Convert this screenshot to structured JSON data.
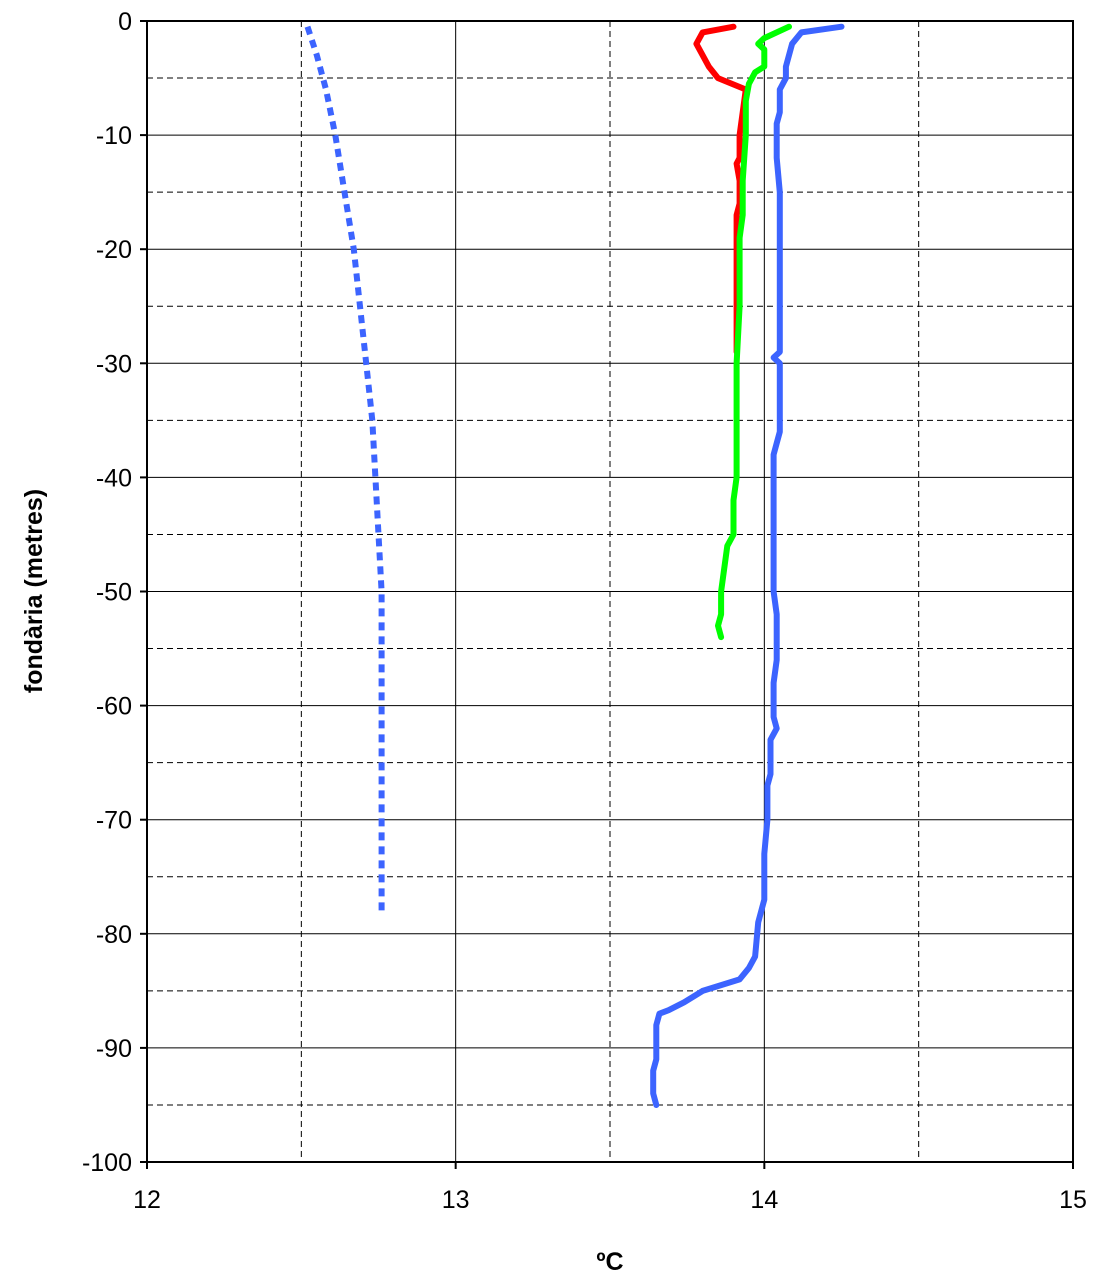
{
  "chart_data": {
    "type": "line",
    "title": "",
    "xlabel": "ºC",
    "ylabel": "fondària (metres)",
    "xlim": [
      12,
      15
    ],
    "ylim": [
      -100,
      0
    ],
    "x_ticks": [
      "12",
      "13",
      "14",
      "15"
    ],
    "y_ticks": [
      "0",
      "-10",
      "-20",
      "-30",
      "-40",
      "-50",
      "-60",
      "-70",
      "-80",
      "-90",
      "-100"
    ],
    "grid": {
      "major": true,
      "minor_dashed": true
    },
    "legend": "none",
    "series": [
      {
        "color": "#ff0000",
        "style": "solid",
        "points": [
          [
            13.9,
            -0.5
          ],
          [
            13.8,
            -1
          ],
          [
            13.78,
            -2
          ],
          [
            13.8,
            -3
          ],
          [
            13.82,
            -4
          ],
          [
            13.85,
            -5
          ],
          [
            13.94,
            -6
          ],
          [
            13.93,
            -8
          ],
          [
            13.92,
            -10
          ],
          [
            13.92,
            -12
          ],
          [
            13.91,
            -12.5
          ],
          [
            13.92,
            -14
          ],
          [
            13.92,
            -16
          ],
          [
            13.91,
            -17
          ],
          [
            13.91,
            -20
          ],
          [
            13.91,
            -25
          ],
          [
            13.91,
            -29
          ]
        ]
      },
      {
        "color": "#00ff00",
        "style": "solid",
        "points": [
          [
            14.08,
            -0.5
          ],
          [
            14.0,
            -1.5
          ],
          [
            13.98,
            -2
          ],
          [
            14.0,
            -2.5
          ],
          [
            14.0,
            -4
          ],
          [
            13.97,
            -4.5
          ],
          [
            13.95,
            -5.5
          ],
          [
            13.94,
            -7
          ],
          [
            13.94,
            -10
          ],
          [
            13.93,
            -14
          ],
          [
            13.93,
            -17
          ],
          [
            13.92,
            -19
          ],
          [
            13.92,
            -25
          ],
          [
            13.91,
            -30
          ],
          [
            13.91,
            -40
          ],
          [
            13.9,
            -42
          ],
          [
            13.9,
            -45
          ],
          [
            13.88,
            -46
          ],
          [
            13.87,
            -48
          ],
          [
            13.86,
            -50
          ],
          [
            13.86,
            -52
          ],
          [
            13.85,
            -53
          ],
          [
            13.86,
            -54
          ]
        ]
      },
      {
        "color": "#3c64ff",
        "style": "solid",
        "points": [
          [
            14.25,
            -0.5
          ],
          [
            14.12,
            -1
          ],
          [
            14.09,
            -2
          ],
          [
            14.07,
            -4
          ],
          [
            14.07,
            -5
          ],
          [
            14.05,
            -6
          ],
          [
            14.05,
            -8
          ],
          [
            14.04,
            -9
          ],
          [
            14.04,
            -12
          ],
          [
            14.05,
            -15
          ],
          [
            14.05,
            -20
          ],
          [
            14.05,
            -25
          ],
          [
            14.05,
            -29
          ],
          [
            14.03,
            -29.5
          ],
          [
            14.05,
            -30
          ],
          [
            14.05,
            -36
          ],
          [
            14.04,
            -37
          ],
          [
            14.03,
            -38
          ],
          [
            14.03,
            -45
          ],
          [
            14.03,
            -50
          ],
          [
            14.04,
            -52
          ],
          [
            14.04,
            -56
          ],
          [
            14.03,
            -58
          ],
          [
            14.03,
            -61
          ],
          [
            14.04,
            -62
          ],
          [
            14.02,
            -63
          ],
          [
            14.02,
            -66
          ],
          [
            14.01,
            -67
          ],
          [
            14.01,
            -70
          ],
          [
            14.0,
            -73
          ],
          [
            14.0,
            -77
          ],
          [
            13.98,
            -79
          ],
          [
            13.97,
            -82
          ],
          [
            13.95,
            -83
          ],
          [
            13.92,
            -84
          ],
          [
            13.86,
            -84.5
          ],
          [
            13.8,
            -85
          ],
          [
            13.74,
            -86
          ],
          [
            13.69,
            -86.7
          ],
          [
            13.66,
            -87
          ],
          [
            13.65,
            -88
          ],
          [
            13.65,
            -91
          ],
          [
            13.64,
            -92
          ],
          [
            13.64,
            -94
          ],
          [
            13.65,
            -95
          ]
        ]
      },
      {
        "color": "#3c64ff",
        "style": "dotted",
        "points": [
          [
            12.52,
            -0.5
          ],
          [
            12.55,
            -3
          ],
          [
            12.58,
            -6
          ],
          [
            12.61,
            -10
          ],
          [
            12.64,
            -15
          ],
          [
            12.67,
            -20
          ],
          [
            12.69,
            -25
          ],
          [
            12.71,
            -30
          ],
          [
            12.73,
            -35
          ],
          [
            12.74,
            -40
          ],
          [
            12.75,
            -45
          ],
          [
            12.76,
            -50
          ],
          [
            12.76,
            -55
          ],
          [
            12.76,
            -60
          ],
          [
            12.76,
            -65
          ],
          [
            12.76,
            -70
          ],
          [
            12.76,
            -75
          ],
          [
            12.76,
            -78
          ]
        ]
      }
    ]
  }
}
